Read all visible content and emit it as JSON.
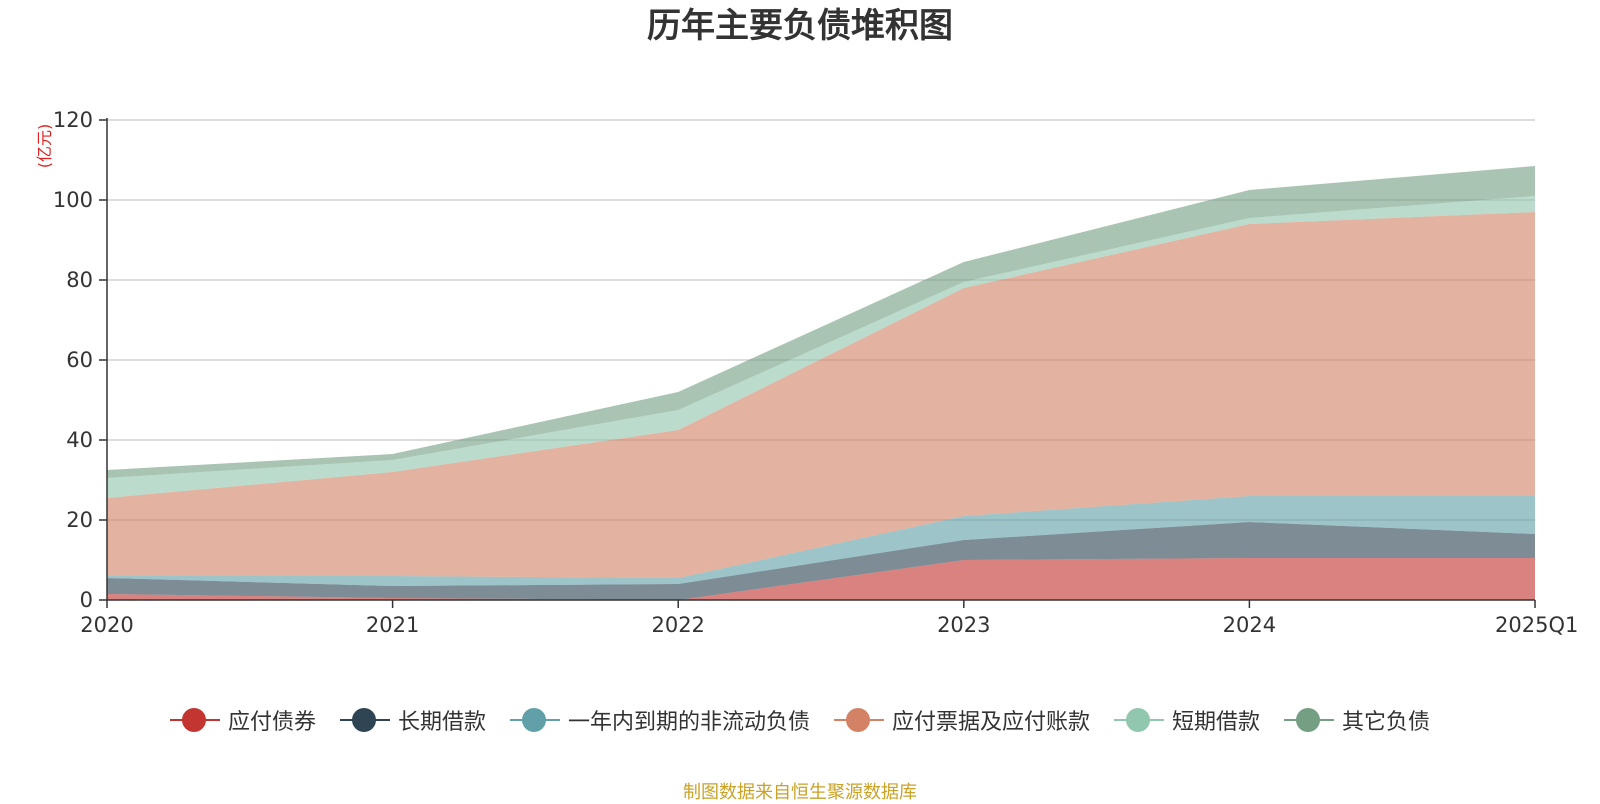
{
  "chart_data": {
    "type": "area",
    "stacked": true,
    "title": "历年主要负债堆积图",
    "unit": "(亿元)",
    "categories": [
      "2020",
      "2021",
      "2022",
      "2023",
      "2024",
      "2025Q1"
    ],
    "yticks": [
      "0",
      "20",
      "40",
      "60",
      "80",
      "100",
      "120"
    ],
    "ylim": [
      0,
      120
    ],
    "grid": true,
    "legend_position": "bottom",
    "series": [
      {
        "name": "应付债券",
        "color": "#c23531",
        "values": [
          1.5,
          0.5,
          0,
          10,
          10.5,
          10.5
        ]
      },
      {
        "name": "长期借款",
        "color": "#2f4554",
        "values": [
          4,
          3,
          4,
          5,
          9,
          6
        ]
      },
      {
        "name": "一年内到期的非流动负债",
        "color": "#61a0a8",
        "values": [
          0.5,
          2.5,
          1.5,
          6,
          6.5,
          9.5
        ]
      },
      {
        "name": "应付票据及应付账款",
        "color": "#d48265",
        "values": [
          19.5,
          26,
          37,
          57,
          68,
          71
        ]
      },
      {
        "name": "短期借款",
        "color": "#91c7ae",
        "values": [
          5,
          3,
          5,
          1.5,
          1.5,
          4
        ]
      },
      {
        "name": "其它负债",
        "color": "#749f83",
        "values": [
          2,
          1.5,
          4.5,
          5,
          7,
          7.5
        ]
      }
    ],
    "source_note": "制图数据来自恒生聚源数据库"
  }
}
